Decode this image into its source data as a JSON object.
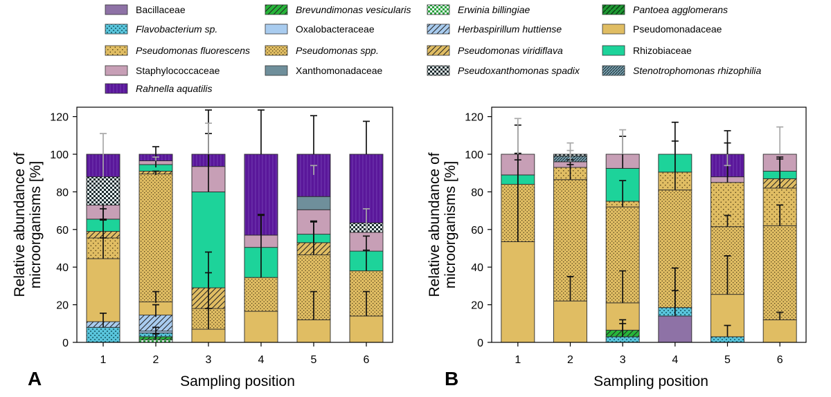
{
  "families": [
    {
      "key": "bac",
      "name": "Bacillaceae",
      "italic": false,
      "fill": "#8e72a6",
      "pattern": "none"
    },
    {
      "key": "bre",
      "name": "Brevundimonas vesicularis",
      "italic": true,
      "fill": "#27b53a",
      "pattern": "diag"
    },
    {
      "key": "erw",
      "name": "Erwinia billingiae",
      "italic": true,
      "fill": "#2aa23b",
      "pattern": "check"
    },
    {
      "key": "pan",
      "name": "Pantoea agglomerans",
      "italic": true,
      "fill": "#1f9a34",
      "pattern": "diagw"
    },
    {
      "key": "fla",
      "name": "Flavobacterium sp.",
      "italic": true,
      "fill": "#5bc8df",
      "pattern": "cross"
    },
    {
      "key": "oxa",
      "name": "Oxalobacteraceae",
      "italic": false,
      "fill": "#a9ccef",
      "pattern": "none"
    },
    {
      "key": "her",
      "name": "Herbaspirillum huttiense",
      "italic": true,
      "fill": "#a9ccef",
      "pattern": "diag"
    },
    {
      "key": "pse",
      "name": "Pseudomonadaceae",
      "italic": false,
      "fill": "#e0bd63",
      "pattern": "none"
    },
    {
      "key": "psf",
      "name": "Pseudomonas fluorescens",
      "italic": true,
      "fill": "#e0bd63",
      "pattern": "dots"
    },
    {
      "key": "pss",
      "name": "Pseudomonas spp.",
      "italic": true,
      "fill": "#e0bd63",
      "pattern": "dense"
    },
    {
      "key": "psv",
      "name": "Pseudomonas viridiflava",
      "italic": true,
      "fill": "#e0bd63",
      "pattern": "diag"
    },
    {
      "key": "rhi",
      "name": "Rhizobiaceae",
      "italic": false,
      "fill": "#1dd39a",
      "pattern": "none"
    },
    {
      "key": "sta",
      "name": "Staphylococcaceae",
      "italic": false,
      "fill": "#c79fb6",
      "pattern": "none"
    },
    {
      "key": "xan",
      "name": "Xanthomonadaceae",
      "italic": false,
      "fill": "#6f8f9b",
      "pattern": "none"
    },
    {
      "key": "psx",
      "name": "Pseudoxanthomonas spadix",
      "italic": true,
      "fill": "#1d2a2e",
      "pattern": "check"
    },
    {
      "key": "ste",
      "name": "Stenotrophomonas rhizophilia",
      "italic": true,
      "fill": "#7aa2b0",
      "pattern": "diagd"
    },
    {
      "key": "rah",
      "name": "Rahnella aquatilis",
      "italic": true,
      "fill": "#5a179a",
      "pattern": "vlines"
    }
  ],
  "legend_order": [
    "bac",
    "bre",
    "erw",
    "pan",
    "fla",
    "oxa",
    "her",
    "pse",
    "psf",
    "pss",
    "psv",
    "rhi",
    "sta",
    "xan",
    "psx",
    "ste",
    "rah"
  ],
  "chart_data": [
    {
      "type": "bar",
      "stacked": true,
      "panel_label": "A",
      "xlabel": "Sampling position",
      "ylabel_line1": "Relative abundance of",
      "ylabel_line2": "microorganisms [%]",
      "ylim": [
        0,
        125
      ],
      "yticks": [
        0,
        20,
        40,
        60,
        80,
        100,
        120
      ],
      "categories": [
        "1",
        "2",
        "3",
        "4",
        "5",
        "6"
      ],
      "stacks": [
        [
          {
            "f": "fla",
            "v": 8
          },
          {
            "f": "her",
            "v": 3
          },
          {
            "f": "pse",
            "v": 33.5
          },
          {
            "f": "psf",
            "v": 11
          },
          {
            "f": "psv",
            "v": 3.5
          },
          {
            "f": "rhi",
            "v": 6.5
          },
          {
            "f": "sta",
            "v": 7.5
          },
          {
            "f": "psx",
            "v": 15
          },
          {
            "f": "rah",
            "v": 12
          }
        ],
        [
          {
            "f": "erw",
            "v": 1.5
          },
          {
            "f": "bre",
            "v": 1.5
          },
          {
            "f": "fla",
            "v": 2
          },
          {
            "f": "oxa",
            "v": 1
          },
          {
            "f": "her",
            "v": 8.5
          },
          {
            "f": "pse",
            "v": 7
          },
          {
            "f": "pss",
            "v": 68
          },
          {
            "f": "psv",
            "v": 1.5
          },
          {
            "f": "rhi",
            "v": 3.5
          },
          {
            "f": "sta",
            "v": 2
          },
          {
            "f": "rah",
            "v": 3.5
          }
        ],
        [
          {
            "f": "pse",
            "v": 7
          },
          {
            "f": "pss",
            "v": 11
          },
          {
            "f": "psv",
            "v": 11
          },
          {
            "f": "rhi",
            "v": 51
          },
          {
            "f": "sta",
            "v": 13.5
          },
          {
            "f": "rah",
            "v": 6.5
          }
        ],
        [
          {
            "f": "pse",
            "v": 16.5
          },
          {
            "f": "pss",
            "v": 18
          },
          {
            "f": "rhi",
            "v": 16
          },
          {
            "f": "sta",
            "v": 6.5
          },
          {
            "f": "rah",
            "v": 43
          }
        ],
        [
          {
            "f": "pse",
            "v": 12
          },
          {
            "f": "pss",
            "v": 34.5
          },
          {
            "f": "psv",
            "v": 6.5
          },
          {
            "f": "rhi",
            "v": 4.5
          },
          {
            "f": "sta",
            "v": 13
          },
          {
            "f": "xan",
            "v": 7
          },
          {
            "f": "rah",
            "v": 22.5
          }
        ],
        [
          {
            "f": "pse",
            "v": 14
          },
          {
            "f": "pss",
            "v": 24
          },
          {
            "f": "rhi",
            "v": 10.5
          },
          {
            "f": "sta",
            "v": 10
          },
          {
            "f": "psx",
            "v": 5
          },
          {
            "f": "rah",
            "v": 36.5
          }
        ]
      ],
      "error_bars": [
        [
          {
            "y": 8,
            "up": 7.5,
            "down": 0
          },
          {
            "y": 44.5,
            "up": 11,
            "down": 0
          },
          {
            "y": 55.5,
            "up": 10,
            "down": 0
          },
          {
            "y": 65.5,
            "up": 5.5,
            "down": 0
          },
          {
            "y": 73,
            "up": 0,
            "down": 8
          },
          {
            "y": 88,
            "up": 23,
            "down": 0,
            "grey": true
          }
        ],
        [
          {
            "y": 1.5,
            "up": 3,
            "down": 0
          },
          {
            "y": 3,
            "up": 5,
            "down": 0
          },
          {
            "y": 13.5,
            "up": 6.5,
            "down": 0
          },
          {
            "y": 21,
            "up": 6,
            "down": 0
          },
          {
            "y": 89,
            "up": 2,
            "down": 0
          },
          {
            "y": 93,
            "up": 11,
            "down": 0
          },
          {
            "y": 96.5,
            "up": 2,
            "down": 0,
            "grey": true
          }
        ],
        [
          {
            "y": 7,
            "up": 11,
            "down": 0
          },
          {
            "y": 18,
            "up": 19,
            "down": 0
          },
          {
            "y": 29,
            "up": 19,
            "down": 0
          },
          {
            "y": 80,
            "up": 31,
            "down": 0
          },
          {
            "y": 93.5,
            "up": 30,
            "down": 0
          },
          {
            "y": 100,
            "up": 16.5,
            "down": 0,
            "grey": true
          }
        ],
        [
          {
            "y": 34.5,
            "up": 33,
            "down": 0
          },
          {
            "y": 57,
            "up": 11,
            "down": 0
          },
          {
            "y": 100,
            "up": 23.5,
            "down": 0
          }
        ],
        [
          {
            "y": 12,
            "up": 15,
            "down": 0
          },
          {
            "y": 46.5,
            "up": 17.5,
            "down": 0
          },
          {
            "y": 53,
            "up": 11.5,
            "down": 0
          },
          {
            "y": 89,
            "up": 5,
            "down": 0,
            "grey": true
          },
          {
            "y": 100,
            "up": 20.5,
            "down": 0
          }
        ],
        [
          {
            "y": 14,
            "up": 13,
            "down": 0
          },
          {
            "y": 38,
            "up": 11,
            "down": 0
          },
          {
            "y": 48.5,
            "up": 8,
            "down": 0
          },
          {
            "y": 59,
            "up": 12,
            "down": 0,
            "grey": true
          },
          {
            "y": 100,
            "up": 17.5,
            "down": 0
          }
        ]
      ]
    },
    {
      "type": "bar",
      "stacked": true,
      "panel_label": "B",
      "xlabel": "Sampling position",
      "ylabel_line1": "Relative abundance of",
      "ylabel_line2": "microorganisms [%]",
      "ylim": [
        0,
        125
      ],
      "yticks": [
        0,
        20,
        40,
        60,
        80,
        100,
        120
      ],
      "categories": [
        "1",
        "2",
        "3",
        "4",
        "5",
        "6"
      ],
      "stacks": [
        [
          {
            "f": "pse",
            "v": 53.5
          },
          {
            "f": "pss",
            "v": 30.5
          },
          {
            "f": "rhi",
            "v": 5
          },
          {
            "f": "sta",
            "v": 11
          }
        ],
        [
          {
            "f": "pse",
            "v": 22
          },
          {
            "f": "pss",
            "v": 64.5
          },
          {
            "f": "psf",
            "v": 6.5
          },
          {
            "f": "sta",
            "v": 3
          },
          {
            "f": "ste",
            "v": 3
          },
          {
            "f": "psx",
            "v": 1
          }
        ],
        [
          {
            "f": "fla",
            "v": 3
          },
          {
            "f": "bre",
            "v": 3.5
          },
          {
            "f": "pse",
            "v": 14.5
          },
          {
            "f": "pss",
            "v": 51
          },
          {
            "f": "psf",
            "v": 3
          },
          {
            "f": "rhi",
            "v": 17.5
          },
          {
            "f": "sta",
            "v": 7.5
          }
        ],
        [
          {
            "f": "bac",
            "v": 14
          },
          {
            "f": "fla",
            "v": 4.5
          },
          {
            "f": "pss",
            "v": 62.5
          },
          {
            "f": "psf",
            "v": 9.5
          },
          {
            "f": "rhi",
            "v": 9.5
          }
        ],
        [
          {
            "f": "fla",
            "v": 3
          },
          {
            "f": "pse",
            "v": 22.5
          },
          {
            "f": "pss",
            "v": 36
          },
          {
            "f": "psf",
            "v": 23.5
          },
          {
            "f": "sta",
            "v": 3
          },
          {
            "f": "rah",
            "v": 12
          }
        ],
        [
          {
            "f": "pse",
            "v": 12
          },
          {
            "f": "pss",
            "v": 50
          },
          {
            "f": "psf",
            "v": 20
          },
          {
            "f": "psv",
            "v": 5
          },
          {
            "f": "rhi",
            "v": 4
          },
          {
            "f": "sta",
            "v": 9
          }
        ]
      ],
      "error_bars": [
        [
          {
            "y": 53.5,
            "up": 62,
            "down": 0
          },
          {
            "y": 84,
            "up": 16.5,
            "down": 0
          },
          {
            "y": 89,
            "up": 8,
            "down": 0
          },
          {
            "y": 100,
            "up": 19,
            "down": 0,
            "grey": true
          }
        ],
        [
          {
            "y": 22,
            "up": 13,
            "down": 0
          },
          {
            "y": 86.5,
            "up": 8,
            "down": 0
          },
          {
            "y": 93,
            "up": 4,
            "down": 0
          },
          {
            "y": 96,
            "up": 6,
            "down": 0,
            "grey": true
          },
          {
            "y": 100,
            "up": 6,
            "down": 0,
            "grey": true
          }
        ],
        [
          {
            "y": 3,
            "up": 9,
            "down": 0
          },
          {
            "y": 6.5,
            "up": 3.5,
            "down": 0
          },
          {
            "y": 21,
            "up": 17,
            "down": 0
          },
          {
            "y": 72,
            "up": 14,
            "down": 0
          },
          {
            "y": 92.5,
            "up": 17,
            "down": 0
          },
          {
            "y": 100,
            "up": 13,
            "down": 0,
            "grey": true
          }
        ],
        [
          {
            "y": 14,
            "up": 13.5,
            "down": 0
          },
          {
            "y": 18.5,
            "up": 21,
            "down": 0
          },
          {
            "y": 81,
            "up": 36,
            "down": 0
          },
          {
            "y": 90.5,
            "up": 16.5,
            "down": 0
          }
        ],
        [
          {
            "y": 3,
            "up": 6,
            "down": 0
          },
          {
            "y": 25.5,
            "up": 20.5,
            "down": 0
          },
          {
            "y": 61.5,
            "up": 6,
            "down": 0
          },
          {
            "y": 85,
            "up": 21,
            "down": 0
          },
          {
            "y": 88,
            "up": 24.5,
            "down": 0
          },
          {
            "y": 100,
            "up": 0,
            "down": 6,
            "grey": true
          }
        ],
        [
          {
            "y": 12,
            "up": 4,
            "down": 0
          },
          {
            "y": 62,
            "up": 11,
            "down": 0
          },
          {
            "y": 82,
            "up": 16.5,
            "down": 0
          },
          {
            "y": 91,
            "up": 6.5,
            "down": 0
          },
          {
            "y": 100,
            "up": 14.5,
            "down": 0,
            "grey": true
          }
        ]
      ]
    }
  ]
}
